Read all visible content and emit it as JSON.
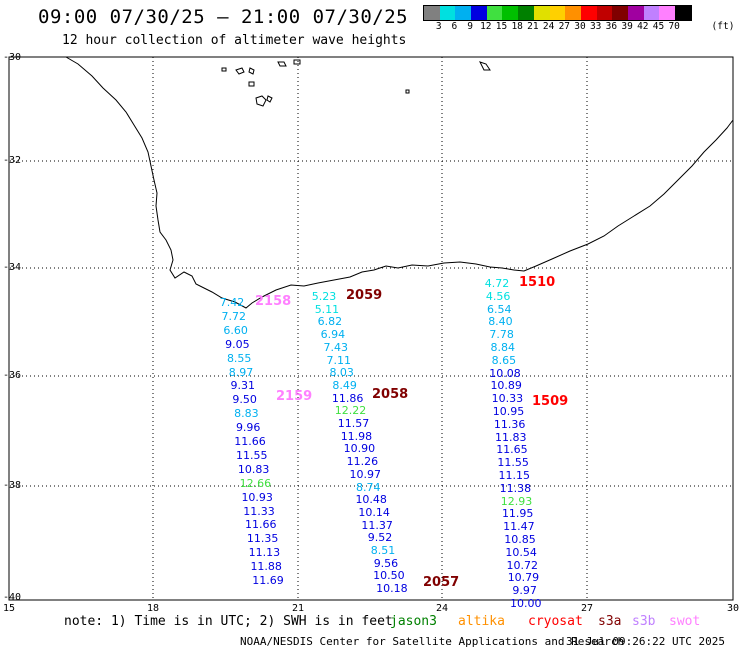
{
  "header": {
    "title": "09:00 07/30/25 – 21:00 07/30/25",
    "subtitle": "12 hour collection of altimeter wave heights"
  },
  "colorbar": {
    "colors": [
      "#808080",
      "#00e0e0",
      "#00b0f0",
      "#0000e0",
      "#40e040",
      "#00c000",
      "#008000",
      "#e0e000",
      "#ffd000",
      "#ff9000",
      "#ff0000",
      "#c00000",
      "#800000",
      "#a000a0",
      "#c080ff",
      "#ff80ff",
      "#000000"
    ],
    "labels": [
      "3",
      "6",
      "9",
      "12",
      "15",
      "18",
      "21",
      "24",
      "27",
      "30",
      "33",
      "36",
      "39",
      "42",
      "45",
      "70",
      "(ft)"
    ]
  },
  "axes": {
    "lat_labels": [
      "-30",
      "-32",
      "-34",
      "-36",
      "-38",
      "-40"
    ],
    "lon_labels": [
      "15",
      "18",
      "21",
      "24",
      "27",
      "30"
    ]
  },
  "passes": [
    {
      "label": "2158",
      "color": "#ff80ff"
    },
    {
      "label": "2059",
      "color": "#800000"
    },
    {
      "label": "1510",
      "color": "#ff0000"
    },
    {
      "label": "2159",
      "color": "#ff80ff"
    },
    {
      "label": "2058",
      "color": "#800000"
    },
    {
      "label": "1509",
      "color": "#ff0000"
    },
    {
      "label": "2057",
      "color": "#800000"
    }
  ],
  "tracks": {
    "track_2158_2159": [
      {
        "v": "7.42",
        "c": "#00b0f0"
      },
      {
        "v": "7.72",
        "c": "#00b0f0"
      },
      {
        "v": "6.60",
        "c": "#00b0f0"
      },
      {
        "v": "9.05",
        "c": "#0000e0"
      },
      {
        "v": "8.55",
        "c": "#00b0f0"
      },
      {
        "v": "8.97",
        "c": "#00b0f0"
      },
      {
        "v": "9.31",
        "c": "#0000e0"
      },
      {
        "v": "9.50",
        "c": "#0000e0"
      },
      {
        "v": "8.83",
        "c": "#00b0f0"
      },
      {
        "v": "9.96",
        "c": "#0000e0"
      },
      {
        "v": "11.66",
        "c": "#0000e0"
      },
      {
        "v": "11.55",
        "c": "#0000e0"
      },
      {
        "v": "10.83",
        "c": "#0000e0"
      },
      {
        "v": "12.66",
        "c": "#40e040"
      },
      {
        "v": "10.93",
        "c": "#0000e0"
      },
      {
        "v": "11.33",
        "c": "#0000e0"
      },
      {
        "v": "11.66",
        "c": "#0000e0"
      },
      {
        "v": "11.35",
        "c": "#0000e0"
      },
      {
        "v": "11.13",
        "c": "#0000e0"
      },
      {
        "v": "11.88",
        "c": "#0000e0"
      },
      {
        "v": "11.69",
        "c": "#0000e0"
      }
    ],
    "track_2059_2057": [
      {
        "v": "5.23",
        "c": "#00e0e0"
      },
      {
        "v": "5.11",
        "c": "#00e0e0"
      },
      {
        "v": "6.82",
        "c": "#00b0f0"
      },
      {
        "v": "6.94",
        "c": "#00b0f0"
      },
      {
        "v": "7.43",
        "c": "#00b0f0"
      },
      {
        "v": "7.11",
        "c": "#00b0f0"
      },
      {
        "v": "8.03",
        "c": "#00b0f0"
      },
      {
        "v": "8.49",
        "c": "#00b0f0"
      },
      {
        "v": "11.86",
        "c": "#0000e0"
      },
      {
        "v": "12.22",
        "c": "#40e040"
      },
      {
        "v": "11.57",
        "c": "#0000e0"
      },
      {
        "v": "11.98",
        "c": "#0000e0"
      },
      {
        "v": "10.90",
        "c": "#0000e0"
      },
      {
        "v": "11.26",
        "c": "#0000e0"
      },
      {
        "v": "10.97",
        "c": "#0000e0"
      },
      {
        "v": "8.74",
        "c": "#00b0f0"
      },
      {
        "v": "10.48",
        "c": "#0000e0"
      },
      {
        "v": "10.14",
        "c": "#0000e0"
      },
      {
        "v": "11.37",
        "c": "#0000e0"
      },
      {
        "v": "9.52",
        "c": "#0000e0"
      },
      {
        "v": "8.51",
        "c": "#00b0f0"
      },
      {
        "v": "9.56",
        "c": "#0000e0"
      },
      {
        "v": "10.50",
        "c": "#0000e0"
      },
      {
        "v": "10.18",
        "c": "#0000e0"
      }
    ],
    "track_1510_1509": [
      {
        "v": "4.72",
        "c": "#00e0e0"
      },
      {
        "v": "4.56",
        "c": "#00e0e0"
      },
      {
        "v": "6.54",
        "c": "#00b0f0"
      },
      {
        "v": "8.40",
        "c": "#00b0f0"
      },
      {
        "v": "7.78",
        "c": "#00b0f0"
      },
      {
        "v": "8.84",
        "c": "#00b0f0"
      },
      {
        "v": "8.65",
        "c": "#00b0f0"
      },
      {
        "v": "10.08",
        "c": "#0000e0"
      },
      {
        "v": "10.89",
        "c": "#0000e0"
      },
      {
        "v": "10.33",
        "c": "#0000e0"
      },
      {
        "v": "10.95",
        "c": "#0000e0"
      },
      {
        "v": "11.36",
        "c": "#0000e0"
      },
      {
        "v": "11.83",
        "c": "#0000e0"
      },
      {
        "v": "11.65",
        "c": "#0000e0"
      },
      {
        "v": "11.55",
        "c": "#0000e0"
      },
      {
        "v": "11.15",
        "c": "#0000e0"
      },
      {
        "v": "11.38",
        "c": "#0000e0"
      },
      {
        "v": "12.93",
        "c": "#40e040"
      },
      {
        "v": "11.95",
        "c": "#0000e0"
      },
      {
        "v": "11.47",
        "c": "#0000e0"
      },
      {
        "v": "10.85",
        "c": "#0000e0"
      },
      {
        "v": "10.54",
        "c": "#0000e0"
      },
      {
        "v": "10.72",
        "c": "#0000e0"
      },
      {
        "v": "10.79",
        "c": "#0000e0"
      },
      {
        "v": "9.97",
        "c": "#0000e0"
      },
      {
        "v": "10.00",
        "c": "#0000e0"
      }
    ]
  },
  "footer": {
    "note": "note: 1) Time is in UTC; 2) SWH is in feet",
    "satellites": [
      {
        "name": "jason3",
        "color": "#008000"
      },
      {
        "name": "altika",
        "color": "#ff9000"
      },
      {
        "name": "cryosat",
        "color": "#ff0000"
      },
      {
        "name": "s3a",
        "color": "#800000"
      },
      {
        "name": "s3b",
        "color": "#c080ff"
      },
      {
        "name": "swot",
        "color": "#ff80ff"
      }
    ],
    "credit": "NOAA/NESDIS Center for Satellite Applications and Research",
    "timestamp": "31 Jul 09:26:22 UTC 2025"
  }
}
